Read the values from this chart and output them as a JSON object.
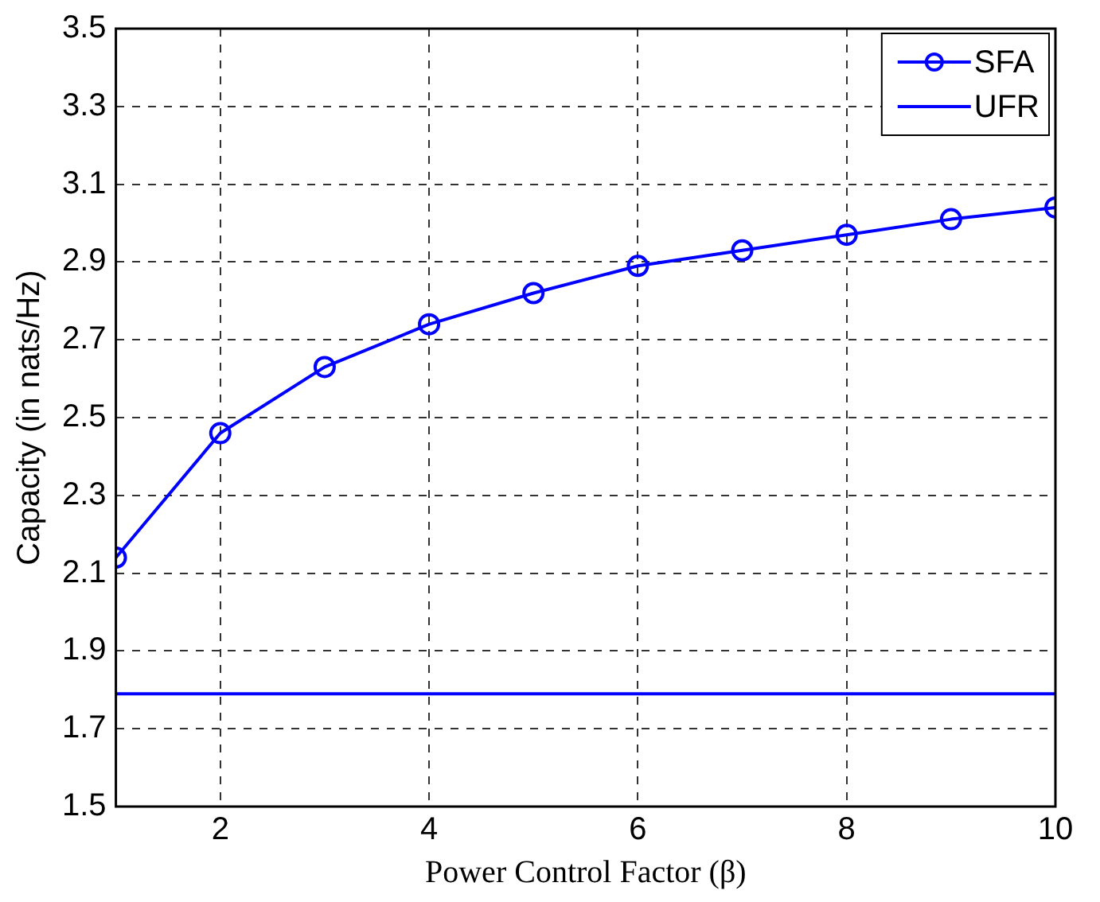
{
  "chart_data": {
    "type": "line",
    "xlabel": "Power Control Factor (β)",
    "ylabel": "Capacity (in nats/Hz)",
    "x": [
      1,
      2,
      3,
      4,
      5,
      6,
      7,
      8,
      9,
      10
    ],
    "series": [
      {
        "name": "SFA",
        "color": "#0000ff",
        "marker": "circle",
        "values": [
          2.14,
          2.46,
          2.63,
          2.74,
          2.82,
          2.89,
          2.93,
          2.97,
          3.01,
          3.04
        ]
      },
      {
        "name": "UFR",
        "color": "#0000ff",
        "marker": "none",
        "values": [
          1.79,
          1.79,
          1.79,
          1.79,
          1.79,
          1.79,
          1.79,
          1.79,
          1.79,
          1.79
        ]
      }
    ],
    "xlim": [
      1,
      10
    ],
    "xticks": [
      2,
      4,
      6,
      8,
      10
    ],
    "ylim": [
      1.5,
      3.5
    ],
    "yticks": [
      1.5,
      1.7,
      1.9,
      2.1,
      2.3,
      2.5,
      2.7,
      2.9,
      3.1,
      3.3,
      3.5
    ],
    "grid": true,
    "line_style": "solid",
    "legend": "top right"
  }
}
